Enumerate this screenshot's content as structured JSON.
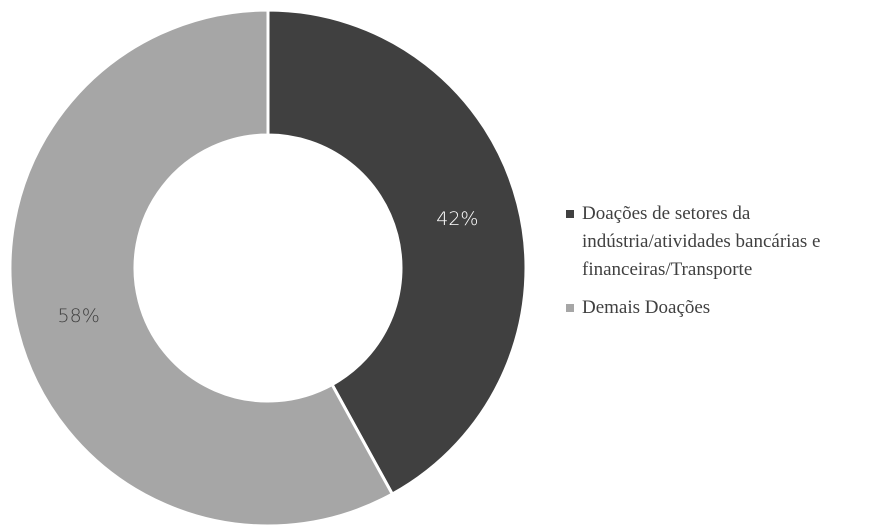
{
  "chart_data": {
    "type": "donut",
    "categories": [
      "Doações de setores da indústria/atividades bancárias e financeiras/Transporte",
      "Demais Doações"
    ],
    "values": [
      42,
      58
    ],
    "value_labels": [
      "42%",
      "58%"
    ],
    "colors": [
      "#404040",
      "#a6a6a6"
    ],
    "legend": "right"
  }
}
